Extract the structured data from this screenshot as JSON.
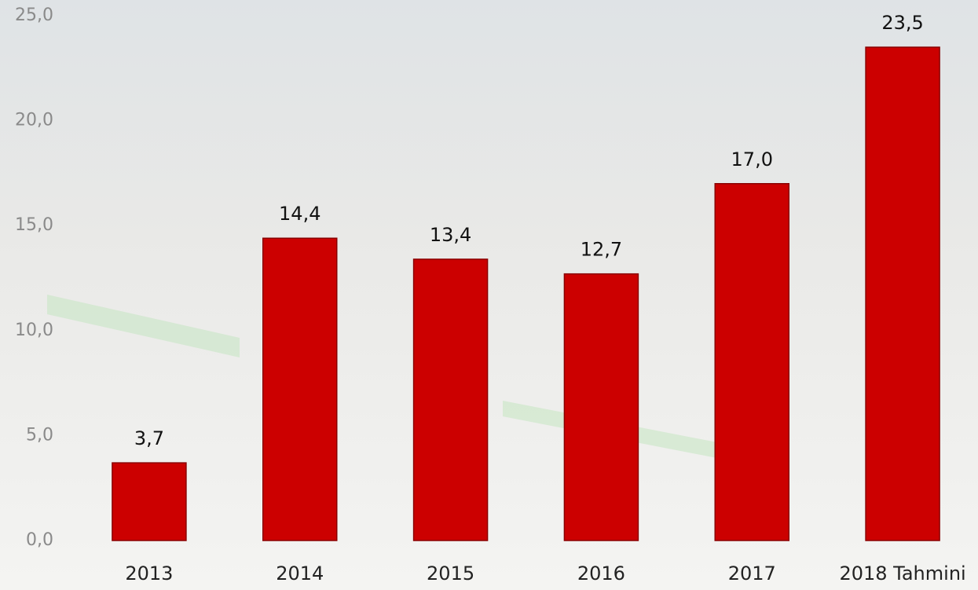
{
  "chart_data": {
    "type": "bar",
    "categories": [
      "2013",
      "2014",
      "2015",
      "2016",
      "2017",
      "2018 Tahmini"
    ],
    "values": [
      3.7,
      14.4,
      13.4,
      12.7,
      17.0,
      23.5
    ],
    "value_labels": [
      "3,7",
      "14,4",
      "13,4",
      "12,7",
      "17,0",
      "23,5"
    ],
    "color": "#cc0000",
    "ylim": [
      0,
      25
    ],
    "yticks": [
      {
        "value": 0,
        "label": "0,0"
      },
      {
        "value": 5,
        "label": "5,0"
      },
      {
        "value": 10,
        "label": "10,0"
      },
      {
        "value": 15,
        "label": "15,0"
      },
      {
        "value": 20,
        "label": "20,0"
      },
      {
        "value": 25,
        "label": "25,0"
      }
    ],
    "grid": false
  }
}
